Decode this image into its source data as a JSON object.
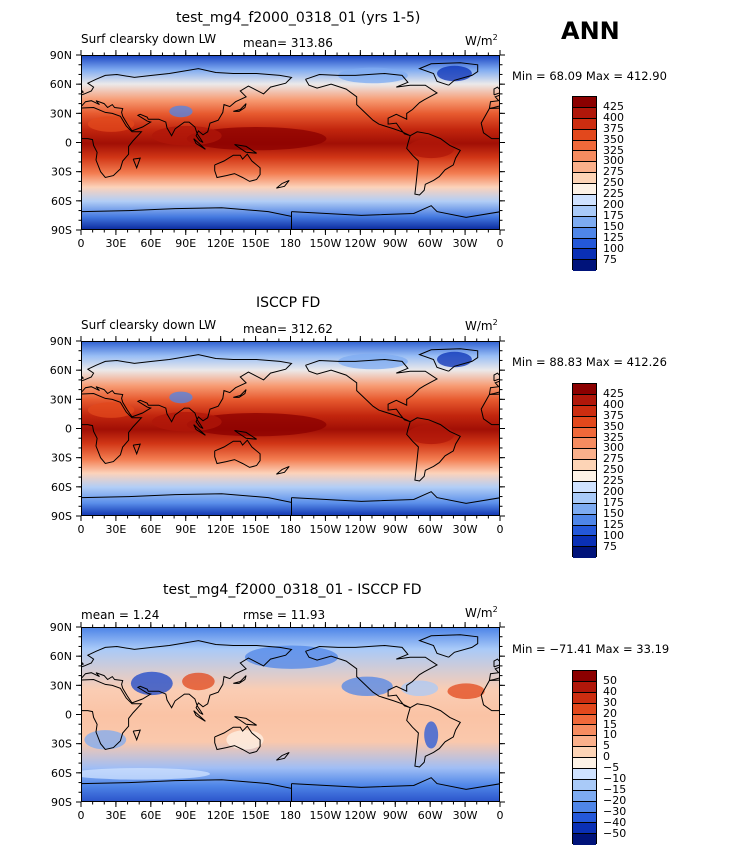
{
  "figure": {
    "season": "ANN",
    "top_title": "test_mg4_f2000_0318_01 (yrs 1-5)",
    "mid_title": "ISCCP FD",
    "bot_title": "test_mg4_f2000_0318_01 - ISCCP FD"
  },
  "chart_data": [
    {
      "type": "heatmap",
      "panel": "model",
      "title": "test_mg4_f2000_0318_01 (yrs 1-5)",
      "field_label": "Surf clearsky down LW",
      "stat_label": "mean= 313.86",
      "mean": 313.86,
      "units_base": "W/m",
      "units_exp": "2",
      "min_max_label": "Min =   68.09 Max = 412.90",
      "min": 68.09,
      "max": 412.9,
      "x_tick_labels": [
        "0",
        "30E",
        "60E",
        "90E",
        "120E",
        "150E",
        "180",
        "150W",
        "120W",
        "90W",
        "60W",
        "30W",
        "0"
      ],
      "y_tick_labels": [
        "90N",
        "60N",
        "30N",
        "0",
        "30S",
        "60S",
        "90S"
      ],
      "colorbar_levels": [
        425,
        400,
        375,
        350,
        325,
        300,
        275,
        250,
        225,
        200,
        175,
        150,
        125,
        100,
        75
      ],
      "colorbar_colors": [
        "#8b0000",
        "#b0170a",
        "#cc2d10",
        "#e2481c",
        "#f0693a",
        "#f68c60",
        "#fab08b",
        "#fdd4b6",
        "#fdf2e6",
        "#cfe2ff",
        "#a9caf8",
        "#7dabf1",
        "#4f86e8",
        "#2458d9",
        "#0a30b5",
        "#00137a"
      ]
    },
    {
      "type": "heatmap",
      "panel": "obs",
      "title": "ISCCP FD",
      "field_label": "Surf clearsky down LW",
      "stat_label": "mean= 312.62",
      "mean": 312.62,
      "units_base": "W/m",
      "units_exp": "2",
      "min_max_label": "Min =   88.83 Max = 412.26",
      "min": 88.83,
      "max": 412.26,
      "x_tick_labels": [
        "0",
        "30E",
        "60E",
        "90E",
        "120E",
        "150E",
        "180",
        "150W",
        "120W",
        "90W",
        "60W",
        "30W",
        "0"
      ],
      "y_tick_labels": [
        "90N",
        "60N",
        "30N",
        "0",
        "30S",
        "60S",
        "90S"
      ],
      "colorbar_levels": [
        425,
        400,
        375,
        350,
        325,
        300,
        275,
        250,
        225,
        200,
        175,
        150,
        125,
        100,
        75
      ],
      "colorbar_colors": [
        "#8b0000",
        "#b0170a",
        "#cc2d10",
        "#e2481c",
        "#f0693a",
        "#f68c60",
        "#fab08b",
        "#fdd4b6",
        "#fdf2e6",
        "#cfe2ff",
        "#a9caf8",
        "#7dabf1",
        "#4f86e8",
        "#2458d9",
        "#0a30b5",
        "#00137a"
      ]
    },
    {
      "type": "heatmap",
      "panel": "diff",
      "title": "test_mg4_f2000_0318_01 - ISCCP FD",
      "mean_label": "mean =     1.24",
      "rmse_label": "rmse =   11.93",
      "mean": 1.24,
      "rmse": 11.93,
      "units_base": "W/m",
      "units_exp": "2",
      "min_max_label": "Min = −71.41 Max =   33.19",
      "min": -71.41,
      "max": 33.19,
      "x_tick_labels": [
        "0",
        "30E",
        "60E",
        "90E",
        "120E",
        "150E",
        "180",
        "150W",
        "120W",
        "90W",
        "60W",
        "30W",
        "0"
      ],
      "y_tick_labels": [
        "90N",
        "60N",
        "30N",
        "0",
        "30S",
        "60S",
        "90S"
      ],
      "colorbar_levels": [
        "50",
        "40",
        "30",
        "20",
        "15",
        "10",
        "5",
        "0",
        "−5",
        "−10",
        "−15",
        "−20",
        "−30",
        "−40",
        "−50"
      ],
      "colorbar_colors": [
        "#8b0000",
        "#b0170a",
        "#cc2d10",
        "#e2481c",
        "#f0693a",
        "#f68c60",
        "#fab08b",
        "#fdd4b6",
        "#fdf2e6",
        "#cfe2ff",
        "#a9caf8",
        "#7dabf1",
        "#4f86e8",
        "#2458d9",
        "#0a30b5",
        "#00137a"
      ]
    }
  ]
}
